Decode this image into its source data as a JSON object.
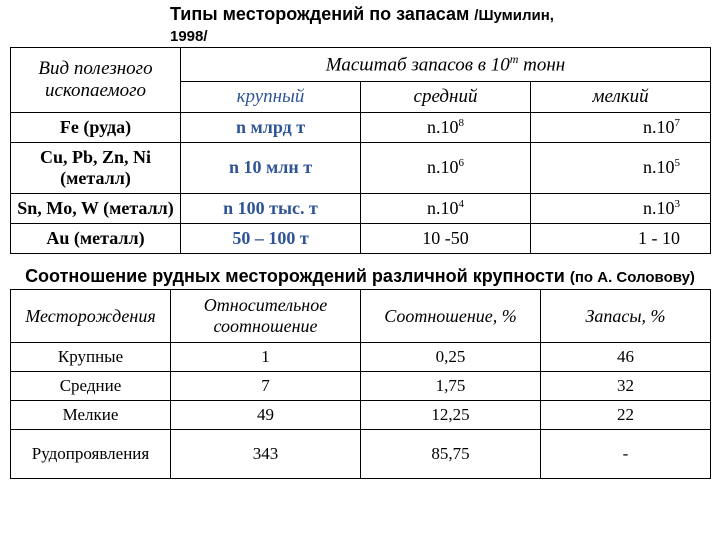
{
  "title1_main": "Типы месторождений по запасам ",
  "title1_src": "/Шумилин, 1998/",
  "table1": {
    "header_left_l1": "Вид полезного",
    "header_left_l2": "ископаемого",
    "header_merge_pre": "Масштаб запасов в 10",
    "header_merge_sup": "m",
    "header_merge_post": " тонн",
    "sub": {
      "large": "крупный",
      "medium": "средний",
      "small": "мелкий"
    },
    "rows": [
      {
        "name": "Fe (руда)",
        "large": "n млрд т",
        "mid_base": "n.10",
        "mid_sup": "8",
        "small_base": "n.10",
        "small_sup": "7"
      },
      {
        "name": "Cu, Pb, Zn, Ni (металл)",
        "large": "n 10 млн т",
        "mid_base": "n.10",
        "mid_sup": "6",
        "small_base": "n.10",
        "small_sup": "5"
      },
      {
        "name": "Sn, Mo, W (металл)",
        "large": "n 100 тыс. т",
        "mid_base": "n.10",
        "mid_sup": "4",
        "small_base": "n.10",
        "small_sup": "3"
      },
      {
        "name": "Au (металл)",
        "large": "50 – 100 т",
        "mid_base": "10 -50",
        "mid_sup": "",
        "small_base": "1 - 10",
        "small_sup": ""
      }
    ]
  },
  "title2_main": "Соотношение рудных месторождений различной крупности ",
  "title2_src": "(по А. Соловову)",
  "table2": {
    "headers": [
      "Месторождения",
      "Относительное соотношение",
      "Соотношение, %",
      "Запасы, %"
    ],
    "rows": [
      {
        "name": "Крупные",
        "rel": "1",
        "pct": "0,25",
        "stock": "46"
      },
      {
        "name": "Средние",
        "rel": "7",
        "pct": "1,75",
        "stock": "32"
      },
      {
        "name": "Мелкие",
        "rel": "49",
        "pct": "12,25",
        "stock": "22"
      },
      {
        "name": "Рудопроявления",
        "rel": "343",
        "pct": "85,75",
        "stock": "-"
      }
    ]
  },
  "colors": {
    "blue": "#2f5597",
    "text": "#000000",
    "bg": "#ffffff",
    "border": "#000000"
  }
}
